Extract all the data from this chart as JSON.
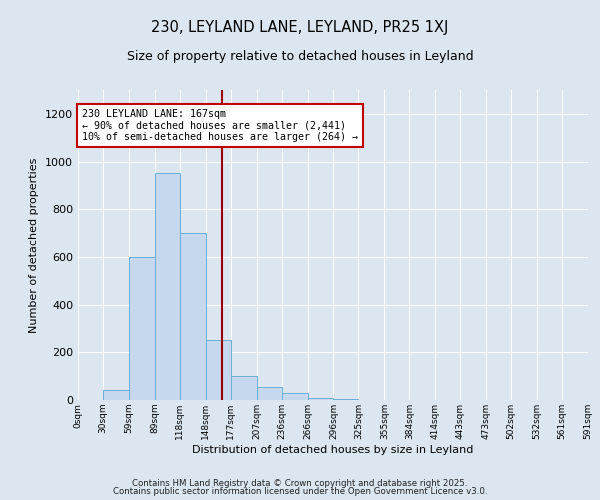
{
  "title1": "230, LEYLAND LANE, LEYLAND, PR25 1XJ",
  "title2": "Size of property relative to detached houses in Leyland",
  "xlabel": "Distribution of detached houses by size in Leyland",
  "ylabel": "Number of detached properties",
  "bar_edges": [
    0,
    29,
    59,
    89,
    118,
    148,
    177,
    207,
    236,
    266,
    296,
    325,
    355,
    384,
    414,
    443,
    473,
    502,
    532,
    561,
    591
  ],
  "bar_heights": [
    0,
    40,
    600,
    950,
    700,
    250,
    100,
    55,
    30,
    10,
    5,
    2,
    0,
    0,
    2,
    0,
    2,
    0,
    0,
    0
  ],
  "bar_color": "#c5d8ee",
  "bar_edge_color": "#6baed6",
  "property_size": 167,
  "vline_color": "#9b0000",
  "annotation_text": "230 LEYLAND LANE: 167sqm\n← 90% of detached houses are smaller (2,441)\n10% of semi-detached houses are larger (264) →",
  "annotation_box_color": "#ffffff",
  "annotation_box_edge_color": "#c00000",
  "ylim": [
    0,
    1300
  ],
  "yticks": [
    0,
    200,
    400,
    600,
    800,
    1000,
    1200
  ],
  "xtick_labels": [
    "0sqm",
    "30sqm",
    "59sqm",
    "89sqm",
    "118sqm",
    "148sqm",
    "177sqm",
    "207sqm",
    "236sqm",
    "266sqm",
    "296sqm",
    "325sqm",
    "355sqm",
    "384sqm",
    "414sqm",
    "443sqm",
    "473sqm",
    "502sqm",
    "532sqm",
    "561sqm",
    "591sqm"
  ],
  "background_color": "#dce6f1",
  "plot_bg_color": "#dce6f1",
  "grid_color": "#ffffff",
  "footer1": "Contains HM Land Registry data © Crown copyright and database right 2025.",
  "footer2": "Contains public sector information licensed under the Open Government Licence v3.0."
}
